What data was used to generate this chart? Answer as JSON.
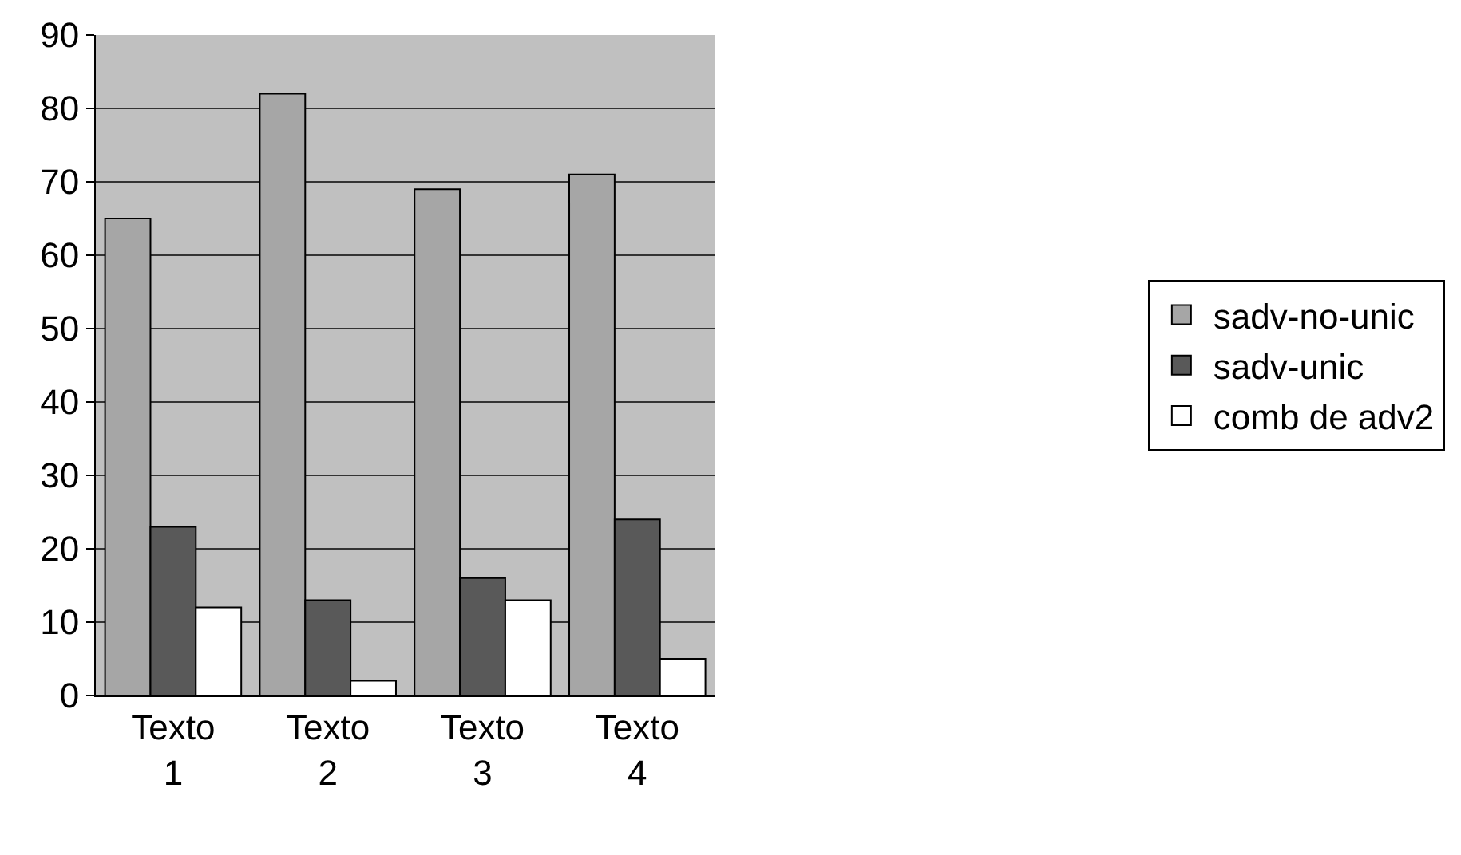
{
  "chart_data": {
    "type": "bar",
    "categories": [
      "Texto 1",
      "Texto 2",
      "Texto 3",
      "Texto 4"
    ],
    "series": [
      {
        "name": "sadv-no-unic",
        "color": "#a6a6a6",
        "values": [
          65,
          82,
          69,
          71
        ]
      },
      {
        "name": "sadv-unic",
        "color": "#595959",
        "values": [
          23,
          13,
          16,
          24
        ]
      },
      {
        "name": "comb de adv2",
        "color": "#ffffff",
        "values": [
          12,
          2,
          13,
          5
        ]
      }
    ],
    "ylim": [
      0,
      90
    ],
    "yticks": [
      0,
      10,
      20,
      30,
      40,
      50,
      60,
      70,
      80,
      90
    ],
    "grid": "y",
    "legend": "right"
  }
}
